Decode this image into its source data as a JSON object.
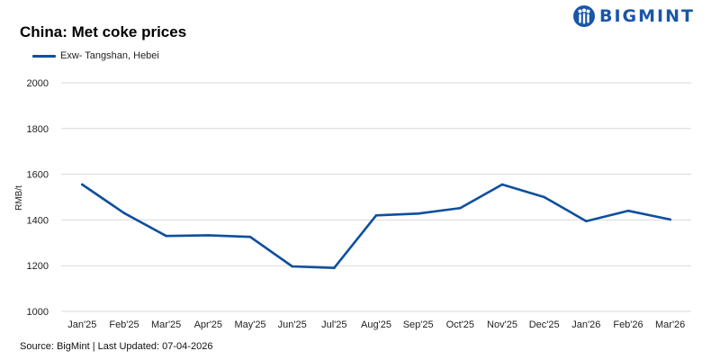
{
  "header": {
    "title": "China: Met coke prices",
    "logo_text": "BIGMINT",
    "logo_color": "#1a56a8"
  },
  "footer": {
    "source": "Source: BigMint | Last Updated: 07-04-2026"
  },
  "chart_data": {
    "type": "line",
    "title": "China: Met coke prices",
    "ylabel": "RMB/t",
    "xlabel": "",
    "ylim": [
      1000,
      2000
    ],
    "yticks": [
      1000,
      1200,
      1400,
      1600,
      1800,
      2000
    ],
    "grid": true,
    "legend_position": "top-left",
    "categories": [
      "Jan'25",
      "Feb'25",
      "Mar'25",
      "Apr'25",
      "May'25",
      "Jun'25",
      "Jul'25",
      "Aug'25",
      "Sep'25",
      "Oct'25",
      "Nov'25",
      "Dec'25",
      "Jan'26",
      "Feb'26",
      "Mar'26"
    ],
    "series": [
      {
        "name": "Exw- Tangshan, Hebei",
        "color": "#0d4f9e",
        "values": [
          1555,
          1430,
          1330,
          1333,
          1326,
          1197,
          1190,
          1420,
          1428,
          1452,
          1555,
          1500,
          1395,
          1440,
          1402
        ]
      }
    ]
  }
}
